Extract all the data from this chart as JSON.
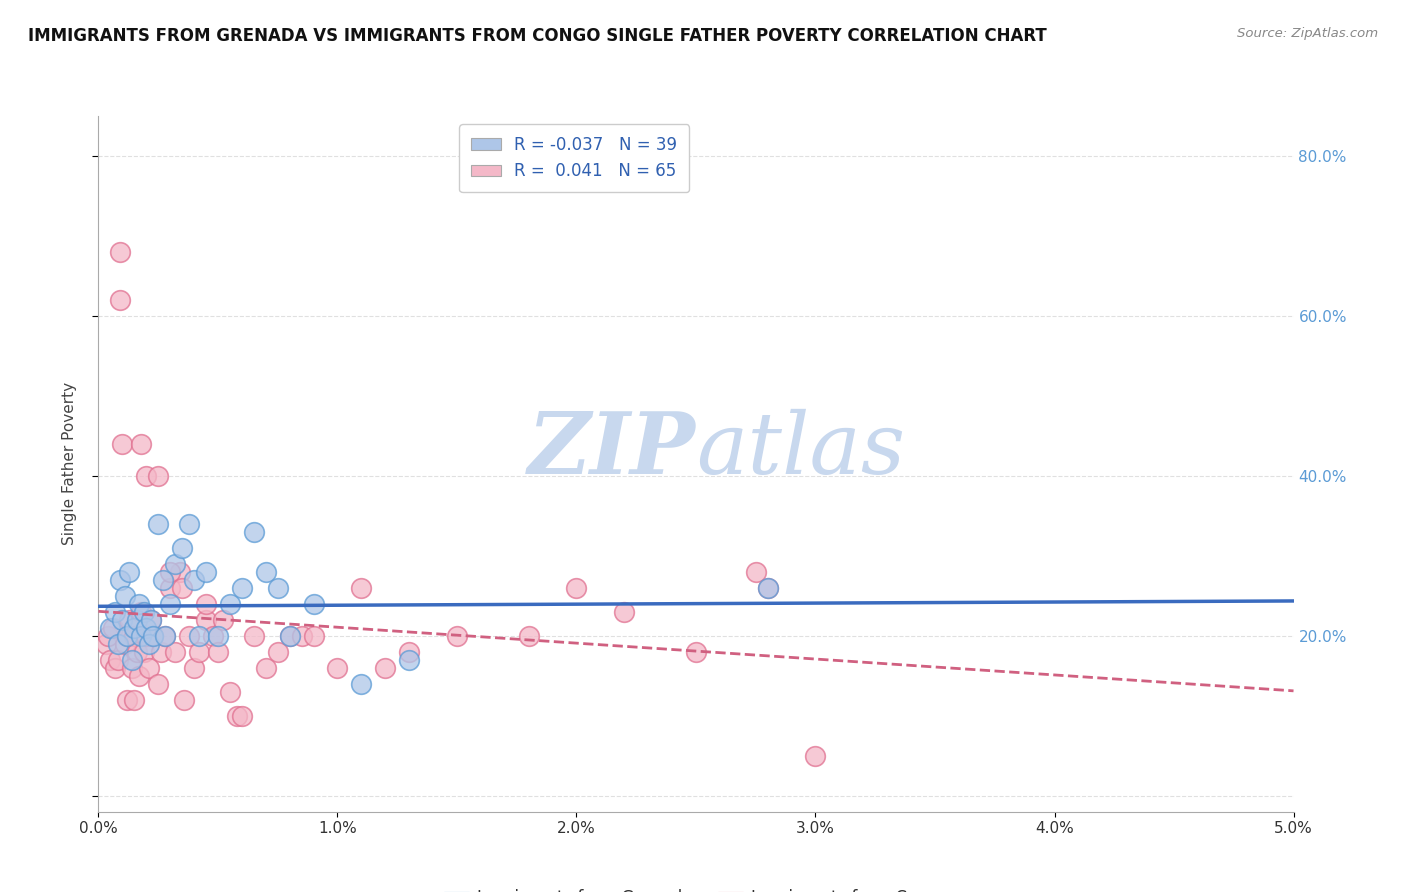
{
  "title": "IMMIGRANTS FROM GRENADA VS IMMIGRANTS FROM CONGO SINGLE FATHER POVERTY CORRELATION CHART",
  "source_text": "Source: ZipAtlas.com",
  "ylabel": "Single Father Poverty",
  "xlim": [
    0.0,
    5.0
  ],
  "ylim": [
    -2.0,
    85.0
  ],
  "legend_entries": [
    {
      "label": "Immigrants from Grenada",
      "color": "#aec6e8",
      "edge_color": "#5b9bd5",
      "R": "-0.037",
      "N": "39"
    },
    {
      "label": "Immigrants from Congo",
      "color": "#f4b8c8",
      "edge_color": "#e07090",
      "R": "0.041",
      "N": "65"
    }
  ],
  "trend_grenada_color": "#3a6bbf",
  "trend_congo_color": "#d06080",
  "background_color": "#ffffff",
  "grid_color": "#cccccc",
  "watermark_zip": "ZIP",
  "watermark_atlas": "atlas",
  "watermark_color": "#c8d8ee",
  "title_fontsize": 12,
  "axis_label_fontsize": 11,
  "tick_fontsize": 11,
  "legend_fontsize": 12,
  "grenada_points_x": [
    0.05,
    0.07,
    0.08,
    0.09,
    0.1,
    0.11,
    0.12,
    0.13,
    0.14,
    0.15,
    0.16,
    0.17,
    0.18,
    0.19,
    0.2,
    0.21,
    0.22,
    0.23,
    0.25,
    0.27,
    0.28,
    0.3,
    0.32,
    0.35,
    0.38,
    0.4,
    0.42,
    0.45,
    0.5,
    0.55,
    0.6,
    0.65,
    0.7,
    0.75,
    0.8,
    0.9,
    1.1,
    1.3,
    2.8
  ],
  "grenada_points_y": [
    21,
    23,
    19,
    27,
    22,
    25,
    20,
    28,
    17,
    21,
    22,
    24,
    20,
    23,
    21,
    19,
    22,
    20,
    34,
    27,
    20,
    24,
    29,
    31,
    34,
    27,
    20,
    28,
    20,
    24,
    26,
    33,
    28,
    26,
    20,
    24,
    14,
    17,
    26
  ],
  "congo_points_x": [
    0.03,
    0.04,
    0.05,
    0.06,
    0.07,
    0.08,
    0.09,
    0.1,
    0.11,
    0.12,
    0.13,
    0.14,
    0.15,
    0.16,
    0.17,
    0.18,
    0.19,
    0.2,
    0.21,
    0.22,
    0.23,
    0.25,
    0.26,
    0.28,
    0.3,
    0.32,
    0.34,
    0.36,
    0.38,
    0.4,
    0.42,
    0.45,
    0.48,
    0.5,
    0.52,
    0.55,
    0.58,
    0.6,
    0.65,
    0.7,
    0.75,
    0.8,
    0.85,
    0.9,
    1.0,
    1.1,
    1.2,
    1.3,
    1.5,
    1.8,
    2.0,
    2.2,
    2.5,
    0.09,
    0.12,
    0.15,
    0.18,
    0.2,
    0.25,
    0.3,
    0.35,
    0.45,
    2.75,
    2.8,
    3.0
  ],
  "congo_points_y": [
    19,
    20,
    17,
    21,
    16,
    17,
    62,
    44,
    19,
    20,
    22,
    16,
    20,
    18,
    15,
    23,
    18,
    20,
    16,
    22,
    20,
    14,
    18,
    20,
    26,
    18,
    28,
    12,
    20,
    16,
    18,
    22,
    20,
    18,
    22,
    13,
    10,
    10,
    20,
    16,
    18,
    20,
    20,
    20,
    16,
    26,
    16,
    18,
    20,
    20,
    26,
    23,
    18,
    68,
    12,
    12,
    44,
    40,
    40,
    28,
    26,
    24,
    28,
    26,
    5
  ]
}
